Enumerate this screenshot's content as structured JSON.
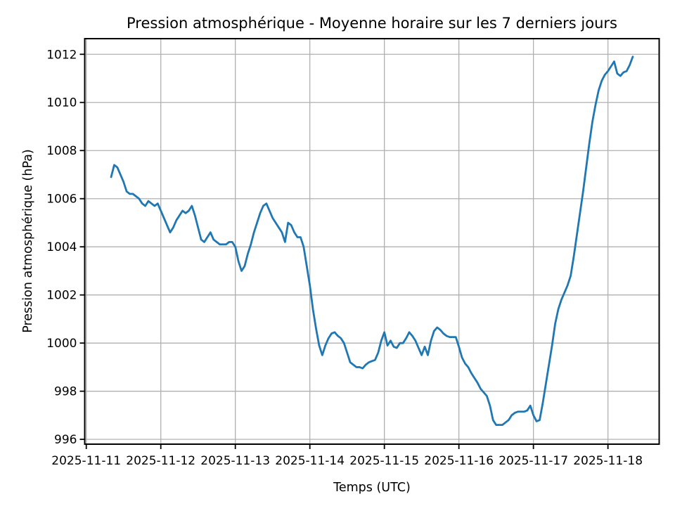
{
  "chart_data": {
    "type": "line",
    "title": "Pression atmosphérique - Moyenne horaire sur les 7 derniers jours",
    "xlabel": "Temps (UTC)",
    "ylabel": "Pression atmosphérique (hPa)",
    "x_tick_labels": [
      "2025-11-11",
      "2025-11-12",
      "2025-11-13",
      "2025-11-14",
      "2025-11-15",
      "2025-11-16",
      "2025-11-17",
      "2025-11-18"
    ],
    "y_ticks": [
      996,
      998,
      1000,
      1002,
      1004,
      1006,
      1008,
      1010,
      1012
    ],
    "ylim": [
      995.8,
      1012.65
    ],
    "xlim_hours": [
      -0.5,
      184.5
    ],
    "grid": true,
    "legend": "none",
    "line_color": "#1f77b4",
    "grid_color": "#b0b0b0",
    "axis_color": "#000000",
    "series": [
      {
        "name": "Pression atmosphérique (hPa)",
        "start_label": "2025-11-11",
        "start_hour_offset": 8,
        "interval_hours": 1,
        "values": [
          1006.9,
          1007.4,
          1007.3,
          1007.0,
          1006.7,
          1006.3,
          1006.2,
          1006.2,
          1006.1,
          1006.0,
          1005.8,
          1005.7,
          1005.9,
          1005.8,
          1005.7,
          1005.8,
          1005.5,
          1005.2,
          1004.9,
          1004.6,
          1004.8,
          1005.1,
          1005.3,
          1005.5,
          1005.4,
          1005.5,
          1005.7,
          1005.3,
          1004.8,
          1004.3,
          1004.2,
          1004.4,
          1004.6,
          1004.3,
          1004.2,
          1004.1,
          1004.1,
          1004.1,
          1004.2,
          1004.2,
          1004.0,
          1003.4,
          1003.0,
          1003.2,
          1003.7,
          1004.1,
          1004.6,
          1005.0,
          1005.4,
          1005.7,
          1005.8,
          1005.5,
          1005.2,
          1005.0,
          1004.8,
          1004.6,
          1004.2,
          1005.0,
          1004.9,
          1004.6,
          1004.4,
          1004.4,
          1004.0,
          1003.2,
          1002.4,
          1001.4,
          1000.6,
          999.9,
          999.5,
          999.9,
          1000.2,
          1000.4,
          1000.45,
          1000.3,
          1000.2,
          1000.0,
          999.6,
          999.2,
          999.1,
          999.0,
          999.0,
          998.95,
          999.1,
          999.2,
          999.25,
          999.3,
          999.6,
          1000.1,
          1000.45,
          999.9,
          1000.1,
          999.85,
          999.8,
          1000.0,
          1000.0,
          1000.2,
          1000.45,
          1000.3,
          1000.1,
          999.8,
          999.5,
          999.85,
          999.5,
          1000.1,
          1000.5,
          1000.65,
          1000.55,
          1000.4,
          1000.3,
          1000.25,
          1000.25,
          1000.25,
          999.85,
          999.4,
          999.15,
          999.0,
          998.75,
          998.55,
          998.35,
          998.1,
          997.95,
          997.8,
          997.4,
          996.8,
          996.6,
          996.6,
          996.6,
          996.7,
          996.8,
          997.0,
          997.1,
          997.15,
          997.15,
          997.15,
          997.2,
          997.4,
          997.0,
          996.75,
          996.8,
          997.5,
          998.3,
          999.1,
          999.9,
          1000.8,
          1001.4,
          1001.8,
          1002.1,
          1002.4,
          1002.8,
          1003.6,
          1004.5,
          1005.4,
          1006.3,
          1007.3,
          1008.3,
          1009.2,
          1009.9,
          1010.5,
          1010.9,
          1011.15,
          1011.3,
          1011.5,
          1011.7,
          1011.2,
          1011.1,
          1011.25,
          1011.3,
          1011.55,
          1011.9
        ]
      }
    ]
  }
}
